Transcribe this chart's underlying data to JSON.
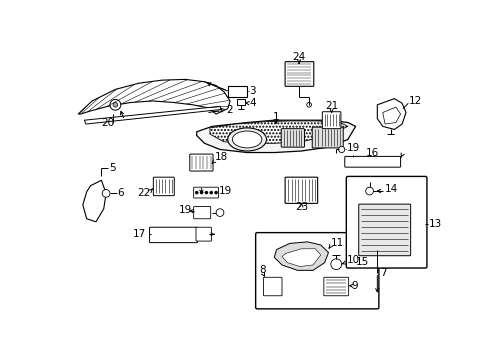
{
  "bg_color": "#ffffff",
  "line_color": "#000000",
  "fig_width": 4.89,
  "fig_height": 3.6,
  "dpi": 100,
  "font_size": 7.5
}
